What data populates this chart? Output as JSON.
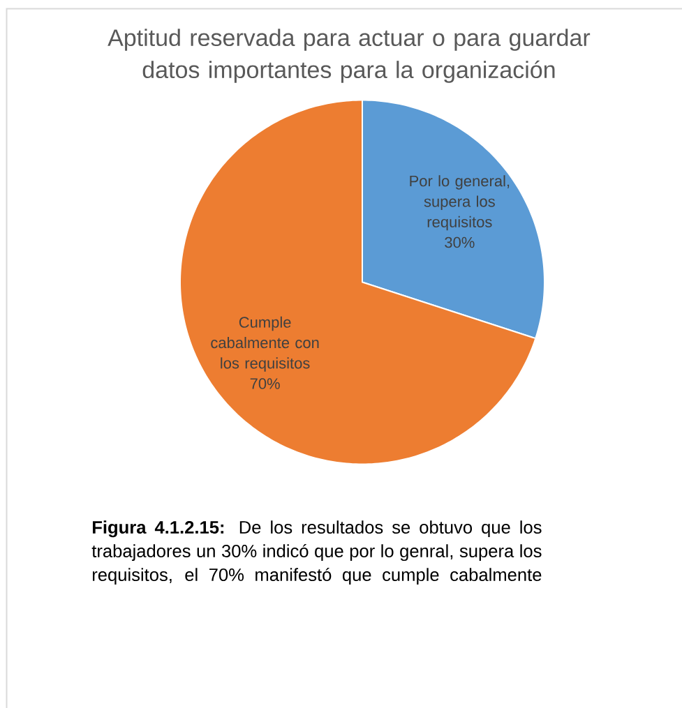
{
  "chart_data": {
    "type": "pie",
    "title": "Aptitud reservada para actuar o para guardar datos importantes para la organización",
    "categories": [
      "Por lo general, supera los requisitos",
      "Cumple cabalmente con los requisitos"
    ],
    "values": [
      30,
      70
    ],
    "colors": [
      "#5b9bd5",
      "#ed7d31"
    ],
    "value_labels": [
      "30%",
      "70%"
    ],
    "annotations": [
      "**Figura 4.1.2.15:** De los resultados se obtuvo que los trabajadores un 30% indicó que por lo genral, supera los requisitos, el 70% manifestó que cumple cabalmente"
    ]
  }
}
